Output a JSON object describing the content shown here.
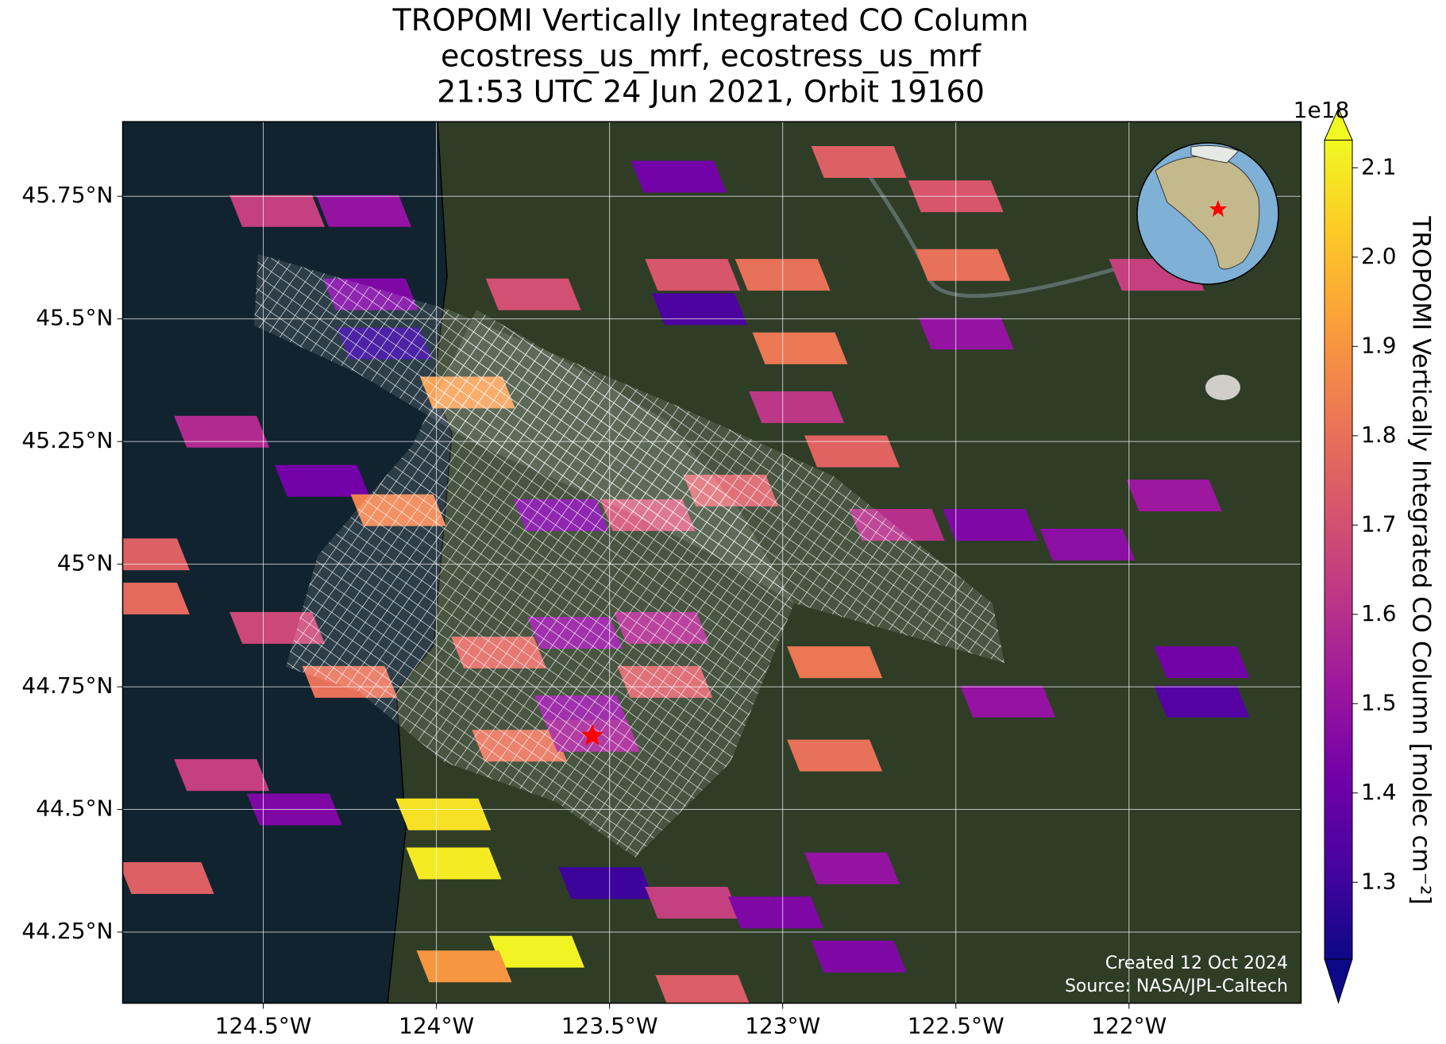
{
  "chart_data": {
    "type": "map",
    "title": [
      "TROPOMI Vertically Integrated CO Column",
      "ecostress_us_mrf, ecostress_us_mrf",
      "21:53 UTC 24 Jun 2021, Orbit 19160"
    ],
    "xlim": [
      -124.906,
      -121.503
    ],
    "ylim": [
      44.105,
      45.902
    ],
    "xticks": [
      {
        "value": -124.5,
        "label": "124.5°W"
      },
      {
        "value": -124,
        "label": "124°W"
      },
      {
        "value": -123.5,
        "label": "123.5°W"
      },
      {
        "value": -123,
        "label": "123°W"
      },
      {
        "value": -122.5,
        "label": "122.5°W"
      },
      {
        "value": -122,
        "label": "122°W"
      }
    ],
    "yticks": [
      {
        "value": 44.25,
        "label": "44.25°N"
      },
      {
        "value": 44.5,
        "label": "44.5°N"
      },
      {
        "value": 44.75,
        "label": "44.75°N"
      },
      {
        "value": 45,
        "label": "45°N"
      },
      {
        "value": 45.25,
        "label": "45.25°N"
      },
      {
        "value": 45.5,
        "label": "45.5°N"
      },
      {
        "value": 45.75,
        "label": "45.75°N"
      }
    ],
    "grid": true,
    "colormap": "plasma",
    "clim": [
      1.214,
      2.131
    ],
    "cticks": [
      1.3,
      1.4,
      1.5,
      1.6,
      1.7,
      1.8,
      1.9,
      {
        "value": 2.0,
        "label": "2.0"
      },
      2.1
    ],
    "colorbar_label": "TROPOMI Vertically Integrated CO Column [molec cm⁻²]",
    "colorbar_offset": "1e18",
    "cells": {
      "lon": [
        -124.46,
        -124.21,
        -124.19,
        -124.15,
        -123.91,
        -123.72,
        -123.26,
        -123.24,
        -123.0,
        -122.95,
        -122.96,
        -122.8,
        -122.78,
        -123.3,
        -122.5,
        -122.48,
        -122.47,
        -124.62,
        -124.33,
        -124.11,
        -123.64,
        -123.39,
        -123.15,
        -122.67,
        -122.4,
        -122.12,
        -121.87,
        -124.85,
        -124.85,
        -124.46,
        -124.25,
        -123.82,
        -123.6,
        -123.35,
        -123.58,
        -123.34,
        -123.76,
        -123.55,
        -123.98,
        -123.95,
        -123.71,
        -123.92,
        -123.51,
        -123.26,
        -123.02,
        -122.78,
        -122.8,
        -122.85,
        -122.85,
        -124.78,
        -124.62,
        -124.41,
        -122.35,
        -121.79,
        -121.79,
        -121.92,
        -123.23
      ],
      "lat": [
        45.72,
        45.72,
        45.55,
        45.45,
        45.35,
        45.55,
        45.59,
        45.52,
        45.59,
        45.44,
        45.32,
        45.23,
        45.82,
        45.79,
        45.75,
        45.61,
        45.47,
        45.27,
        45.17,
        45.11,
        45.1,
        45.1,
        45.15,
        45.08,
        45.08,
        45.04,
        45.14,
        45.02,
        44.93,
        44.87,
        44.76,
        44.82,
        44.86,
        44.87,
        44.7,
        44.76,
        44.63,
        44.65,
        44.49,
        44.39,
        44.21,
        44.18,
        44.35,
        44.31,
        44.29,
        44.2,
        44.38,
        44.61,
        44.8,
        44.36,
        44.57,
        44.5,
        44.72,
        44.72,
        44.8,
        45.59,
        44.13
      ],
      "values": [
        1.65,
        1.5,
        1.45,
        1.28,
        1.9,
        1.7,
        1.72,
        1.33,
        1.8,
        1.82,
        1.62,
        1.76,
        1.75,
        1.42,
        1.72,
        1.8,
        1.5,
        1.58,
        1.42,
        1.85,
        1.45,
        1.7,
        1.74,
        1.6,
        1.45,
        1.48,
        1.52,
        1.75,
        1.78,
        1.68,
        1.8,
        1.77,
        1.5,
        1.58,
        1.5,
        1.74,
        1.8,
        1.55,
        2.08,
        2.1,
        2.12,
        1.9,
        1.3,
        1.65,
        1.45,
        1.45,
        1.5,
        1.8,
        1.82,
        1.75,
        1.65,
        1.45,
        1.5,
        1.35,
        1.42,
        1.65,
        1.74
      ]
    },
    "marker": {
      "lon": -123.55,
      "lat": 44.65,
      "color": "#ff0000"
    },
    "annotations": [
      "Created 12 Oct 2024",
      "Source: NASA/JPL-Caltech"
    ]
  }
}
